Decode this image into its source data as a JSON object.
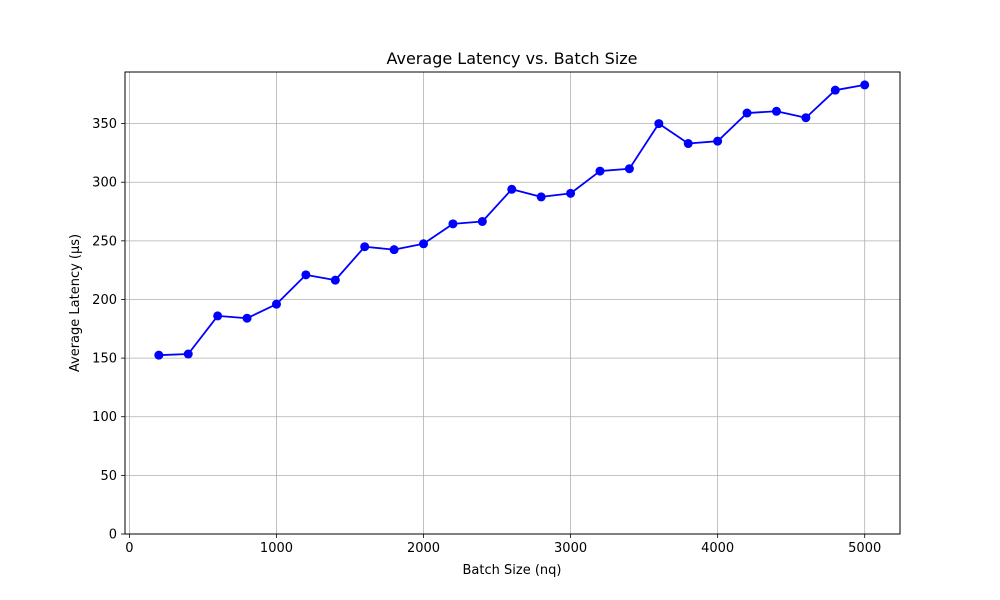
{
  "chart_data": {
    "type": "line",
    "title": "Average Latency vs. Batch Size",
    "xlabel": "Batch Size (nq)",
    "ylabel": "Average Latency (µs)",
    "xlim": [
      -30,
      5240
    ],
    "ylim": [
      0,
      394
    ],
    "xticks": [
      0,
      1000,
      2000,
      3000,
      4000,
      5000
    ],
    "xtick_labels": [
      "0",
      "1000",
      "2000",
      "3000",
      "4000",
      "5000"
    ],
    "yticks": [
      0,
      50,
      100,
      150,
      200,
      250,
      300,
      350
    ],
    "ytick_labels": [
      "0",
      "50",
      "100",
      "150",
      "200",
      "250",
      "300",
      "350"
    ],
    "grid": true,
    "series": [
      {
        "color": "#0000ff",
        "marker": "circle",
        "x": [
          200,
          400,
          600,
          800,
          1000,
          1200,
          1400,
          1600,
          1800,
          2000,
          2200,
          2400,
          2600,
          2800,
          3000,
          3200,
          3400,
          3600,
          3800,
          4000,
          4200,
          4400,
          4600,
          4800,
          5000
        ],
        "y": [
          152.5,
          153.5,
          186,
          184,
          196,
          221,
          216.5,
          245,
          242.5,
          247.5,
          264.5,
          266.5,
          294,
          287.5,
          290.5,
          309.5,
          311.5,
          350,
          333,
          335,
          359,
          360.5,
          355,
          378.5,
          383
        ]
      }
    ]
  }
}
